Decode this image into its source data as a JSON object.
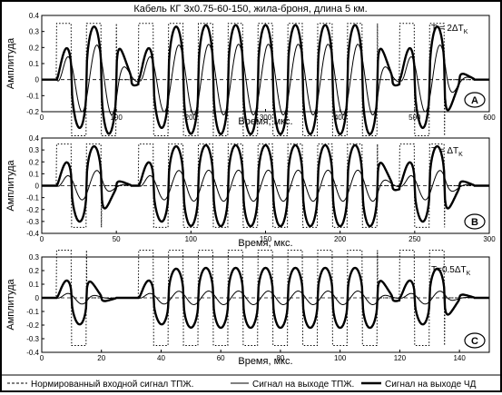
{
  "figure": {
    "title": "Кабель КГ 3х0.75-60-150, жила-броня, длина 5 км.",
    "legend": [
      {
        "label": "Нормированный входной сигнал ТПЖ.",
        "style": "dashed"
      },
      {
        "label": "Сигнал на выходе ТПЖ.",
        "style": "thin"
      },
      {
        "label": "Сигнал на выходе  ЧД",
        "style": "bold"
      }
    ]
  },
  "chart_data": [
    {
      "type": "line",
      "panel": "A",
      "annotation": "T = 2ΔT",
      "annotation_sub": "K",
      "xlabel": "Время,  мкс.",
      "ylabel": "Амплитуда",
      "xlim": [
        0,
        600
      ],
      "ylim": [
        -0.2,
        0.4
      ],
      "xticks": [
        0,
        100,
        200,
        300,
        400,
        500,
        600
      ],
      "yticks": [
        -0.2,
        -0.1,
        0,
        0.1,
        0.2,
        0.3,
        0.4
      ],
      "bursts": [
        [
          20,
          100
        ],
        [
          130,
          450
        ],
        [
          480,
          540
        ]
      ],
      "period": 40,
      "series": [
        {
          "style": "dotted",
          "amplitude": 0.35
        },
        {
          "style": "thin",
          "amplitude": 0.22
        },
        {
          "style": "bold",
          "amplitude": 0.34
        }
      ]
    },
    {
      "type": "line",
      "panel": "B",
      "annotation": "T = ΔT",
      "annotation_sub": "K",
      "xlabel": "Время,  мкс.",
      "ylabel": "Амплитуда",
      "xlim": [
        0,
        300
      ],
      "ylim": [
        -0.4,
        0.4
      ],
      "xticks": [
        0,
        50,
        100,
        150,
        200,
        250,
        300
      ],
      "yticks": [
        -0.4,
        -0.3,
        -0.2,
        -0.1,
        0,
        0.1,
        0.2,
        0.3,
        0.4
      ],
      "bursts": [
        [
          10,
          40
        ],
        [
          65,
          225
        ],
        [
          240,
          270
        ]
      ],
      "period": 20,
      "series": [
        {
          "style": "dotted",
          "amplitude": 0.35
        },
        {
          "style": "thin",
          "amplitude": 0.13
        },
        {
          "style": "bold",
          "amplitude": 0.34
        }
      ]
    },
    {
      "type": "line",
      "panel": "C",
      "annotation": "T=0.5ΔT",
      "annotation_sub": "K",
      "xlabel": "Время,  мкс.",
      "ylabel": "Амплитуда",
      "xlim": [
        0,
        150
      ],
      "ylim": [
        -0.4,
        0.3
      ],
      "xticks": [
        0,
        20,
        40,
        60,
        80,
        100,
        120,
        140
      ],
      "yticks": [
        -0.4,
        -0.3,
        -0.2,
        -0.1,
        0,
        0.1,
        0.2,
        0.3
      ],
      "bursts": [
        [
          5,
          15
        ],
        [
          32.5,
          112.5
        ],
        [
          120,
          135
        ]
      ],
      "period": 10,
      "series": [
        {
          "style": "dotted",
          "amplitude": 0.35
        },
        {
          "style": "thin",
          "amplitude": 0.05
        },
        {
          "style": "bold",
          "amplitude": 0.22
        }
      ]
    }
  ]
}
